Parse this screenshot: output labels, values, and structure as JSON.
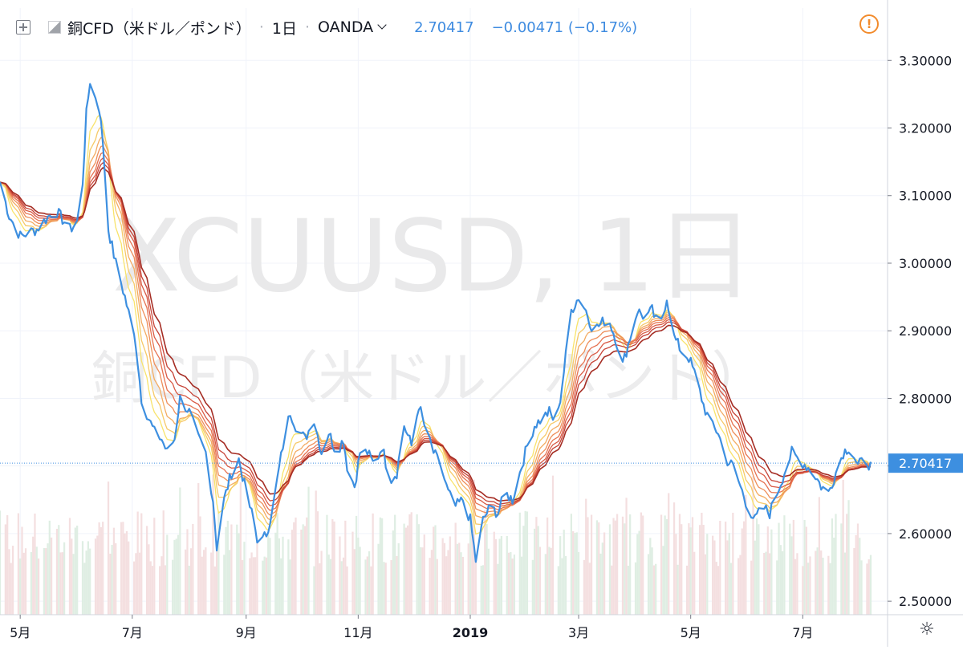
{
  "header": {
    "symbol": "銅CFD（米ドル／ポンド）",
    "interval": "1日",
    "separator": "·",
    "exchange": "OANDA",
    "last_price": "2.70417",
    "change": "−0.00471 (−0.17%)"
  },
  "watermark": {
    "ticker": "XCUUSD, 1日",
    "name": "銅CFD（米ドル／ポンド）"
  },
  "price_label": "2.70417",
  "colors": {
    "price_line": "#3d8fe0",
    "axis_text": "#131722",
    "grid": "#f0f3fa",
    "watermark": "#e9e9ea",
    "volume_up": "#dfeee3",
    "volume_down": "#f4dfe0",
    "ma_ramp": [
      "#f8e36a",
      "#f6c968",
      "#f3ab62",
      "#ee8e5a",
      "#e67352",
      "#d95a45",
      "#c64337",
      "#a52d24"
    ],
    "last_price_line": "#3d8fe0",
    "warning": "#f28b2c"
  },
  "icons": [
    "add-compare-icon",
    "symbol-flag-icon",
    "chevron-down-icon",
    "warning-icon",
    "settings-icon"
  ],
  "chart_data": {
    "type": "line",
    "y_axis_position": "right",
    "ylim": [
      2.48,
      3.33
    ],
    "y_ticks": [
      {
        "value": 2.5,
        "label": "2.50000"
      },
      {
        "value": 2.6,
        "label": "2.60000"
      },
      {
        "value": 2.7,
        "label": "2.70000"
      },
      {
        "value": 2.8,
        "label": "2.80000"
      },
      {
        "value": 2.9,
        "label": "2.90000"
      },
      {
        "value": 3.0,
        "label": "3.00000"
      },
      {
        "value": 3.1,
        "label": "3.10000"
      },
      {
        "value": 3.2,
        "label": "3.20000"
      },
      {
        "value": 3.3,
        "label": "3.30000"
      }
    ],
    "x_axis": {
      "start": "2018-04-20",
      "end": "2019-08-07",
      "ticks": [
        {
          "date": "2018-05-01",
          "label": "5月"
        },
        {
          "date": "2018-07-01",
          "label": "7月"
        },
        {
          "date": "2018-09-01",
          "label": "9月"
        },
        {
          "date": "2018-11-01",
          "label": "11月"
        },
        {
          "date": "2019-01-01",
          "label": "2019"
        },
        {
          "date": "2019-03-01",
          "label": "3月"
        },
        {
          "date": "2019-05-01",
          "label": "5月"
        },
        {
          "date": "2019-07-01",
          "label": "7月"
        }
      ]
    },
    "price_keypoints": [
      [
        "2018-04-20",
        3.12
      ],
      [
        "2018-04-25",
        3.07
      ],
      [
        "2018-05-01",
        3.04
      ],
      [
        "2018-05-10",
        3.05
      ],
      [
        "2018-05-20",
        3.08
      ],
      [
        "2018-05-28",
        3.05
      ],
      [
        "2018-06-01",
        3.06
      ],
      [
        "2018-06-04",
        3.12
      ],
      [
        "2018-06-06",
        3.22
      ],
      [
        "2018-06-08",
        3.27
      ],
      [
        "2018-06-10",
        3.25
      ],
      [
        "2018-06-13",
        3.23
      ],
      [
        "2018-06-15",
        3.18
      ],
      [
        "2018-06-18",
        3.05
      ],
      [
        "2018-06-22",
        3.0
      ],
      [
        "2018-06-27",
        2.95
      ],
      [
        "2018-07-03",
        2.88
      ],
      [
        "2018-07-06",
        2.8
      ],
      [
        "2018-07-10",
        2.77
      ],
      [
        "2018-07-13",
        2.75
      ],
      [
        "2018-07-17",
        2.74
      ],
      [
        "2018-07-20",
        2.72
      ],
      [
        "2018-07-24",
        2.74
      ],
      [
        "2018-07-27",
        2.8
      ],
      [
        "2018-08-01",
        2.78
      ],
      [
        "2018-08-06",
        2.74
      ],
      [
        "2018-08-10",
        2.72
      ],
      [
        "2018-08-14",
        2.65
      ],
      [
        "2018-08-16",
        2.58
      ],
      [
        "2018-08-20",
        2.65
      ],
      [
        "2018-08-24",
        2.69
      ],
      [
        "2018-08-28",
        2.71
      ],
      [
        "2018-09-01",
        2.66
      ],
      [
        "2018-09-05",
        2.62
      ],
      [
        "2018-09-08",
        2.58
      ],
      [
        "2018-09-12",
        2.6
      ],
      [
        "2018-09-15",
        2.63
      ],
      [
        "2018-09-18",
        2.68
      ],
      [
        "2018-09-21",
        2.73
      ],
      [
        "2018-09-25",
        2.78
      ],
      [
        "2018-09-28",
        2.76
      ],
      [
        "2018-10-03",
        2.74
      ],
      [
        "2018-10-08",
        2.77
      ],
      [
        "2018-10-12",
        2.72
      ],
      [
        "2018-10-16",
        2.75
      ],
      [
        "2018-10-20",
        2.72
      ],
      [
        "2018-10-24",
        2.74
      ],
      [
        "2018-10-26",
        2.7
      ],
      [
        "2018-10-30",
        2.67
      ],
      [
        "2018-11-02",
        2.72
      ],
      [
        "2018-11-06",
        2.72
      ],
      [
        "2018-11-10",
        2.7
      ],
      [
        "2018-11-14",
        2.73
      ],
      [
        "2018-11-18",
        2.68
      ],
      [
        "2018-11-22",
        2.69
      ],
      [
        "2018-11-26",
        2.76
      ],
      [
        "2018-11-30",
        2.73
      ],
      [
        "2018-12-04",
        2.79
      ],
      [
        "2018-12-08",
        2.75
      ],
      [
        "2018-12-12",
        2.72
      ],
      [
        "2018-12-16",
        2.7
      ],
      [
        "2018-12-20",
        2.66
      ],
      [
        "2018-12-24",
        2.64
      ],
      [
        "2018-12-28",
        2.65
      ],
      [
        "2019-01-01",
        2.62
      ],
      [
        "2019-01-04",
        2.56
      ],
      [
        "2019-01-08",
        2.62
      ],
      [
        "2019-01-12",
        2.64
      ],
      [
        "2019-01-16",
        2.63
      ],
      [
        "2019-01-20",
        2.66
      ],
      [
        "2019-01-24",
        2.65
      ],
      [
        "2019-01-28",
        2.69
      ],
      [
        "2019-02-01",
        2.73
      ],
      [
        "2019-02-05",
        2.76
      ],
      [
        "2019-02-09",
        2.77
      ],
      [
        "2019-02-13",
        2.78
      ],
      [
        "2019-02-17",
        2.76
      ],
      [
        "2019-02-21",
        2.84
      ],
      [
        "2019-02-25",
        2.93
      ],
      [
        "2019-03-01",
        2.95
      ],
      [
        "2019-03-05",
        2.93
      ],
      [
        "2019-03-09",
        2.9
      ],
      [
        "2019-03-13",
        2.91
      ],
      [
        "2019-03-17",
        2.92
      ],
      [
        "2019-03-21",
        2.89
      ],
      [
        "2019-03-25",
        2.85
      ],
      [
        "2019-03-29",
        2.89
      ],
      [
        "2019-04-02",
        2.93
      ],
      [
        "2019-04-06",
        2.92
      ],
      [
        "2019-04-10",
        2.93
      ],
      [
        "2019-04-14",
        2.9
      ],
      [
        "2019-04-18",
        2.95
      ],
      [
        "2019-04-22",
        2.89
      ],
      [
        "2019-04-26",
        2.87
      ],
      [
        "2019-04-30",
        2.86
      ],
      [
        "2019-05-04",
        2.83
      ],
      [
        "2019-05-08",
        2.79
      ],
      [
        "2019-05-12",
        2.76
      ],
      [
        "2019-05-16",
        2.75
      ],
      [
        "2019-05-20",
        2.71
      ],
      [
        "2019-05-24",
        2.7
      ],
      [
        "2019-05-28",
        2.67
      ],
      [
        "2019-06-01",
        2.64
      ],
      [
        "2019-06-05",
        2.62
      ],
      [
        "2019-06-09",
        2.64
      ],
      [
        "2019-06-13",
        2.63
      ],
      [
        "2019-06-17",
        2.66
      ],
      [
        "2019-06-21",
        2.69
      ],
      [
        "2019-06-25",
        2.72
      ],
      [
        "2019-06-29",
        2.71
      ],
      [
        "2019-07-03",
        2.7
      ],
      [
        "2019-07-07",
        2.69
      ],
      [
        "2019-07-11",
        2.67
      ],
      [
        "2019-07-15",
        2.66
      ],
      [
        "2019-07-19",
        2.69
      ],
      [
        "2019-07-23",
        2.72
      ],
      [
        "2019-07-27",
        2.73
      ],
      [
        "2019-07-31",
        2.7
      ],
      [
        "2019-08-04",
        2.71
      ],
      [
        "2019-08-07",
        2.7
      ]
    ],
    "series": [
      {
        "type": "line",
        "values_ref": "price_keypoints"
      },
      {
        "type": "ribbon-moving-averages",
        "count": 8,
        "source_ref": "price_keypoints"
      },
      {
        "type": "volume",
        "source_ref": "price_keypoints"
      }
    ],
    "last_price": 2.70417,
    "grid": true
  }
}
